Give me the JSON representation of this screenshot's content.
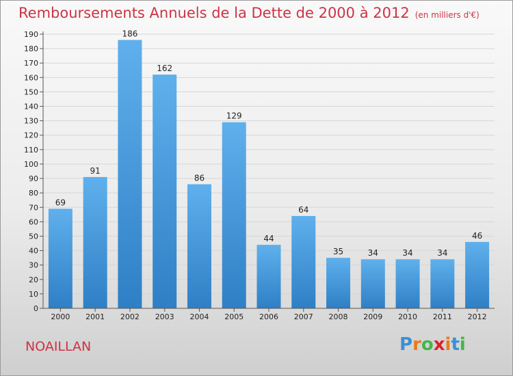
{
  "title": "Remboursements Annuels de la Dette de 2000 à 2012",
  "subtitle": "(en milliers d'€)",
  "commune": "NOAILLAN",
  "logo": {
    "letters": [
      "P",
      "r",
      "o",
      "x",
      "i",
      "t",
      "i"
    ],
    "colors": [
      "#3b8fd4",
      "#e87b1c",
      "#43b64a",
      "#d8232a",
      "#e87b1c",
      "#3b8fd4",
      "#43b64a"
    ]
  },
  "chart_data": {
    "type": "bar",
    "categories": [
      "2000",
      "2001",
      "2002",
      "2003",
      "2004",
      "2005",
      "2006",
      "2007",
      "2008",
      "2009",
      "2010",
      "2011",
      "2012"
    ],
    "values": [
      69,
      91,
      186,
      162,
      86,
      129,
      44,
      64,
      35,
      34,
      34,
      34,
      46
    ],
    "title": "Remboursements Annuels de la Dette de 2000 à 2012",
    "subtitle": "(en milliers d'€)",
    "xlabel": "",
    "ylabel": "",
    "ylim": [
      0,
      190
    ],
    "ytick_step": 10,
    "grid": true,
    "bar_color": "#4d9fe0"
  }
}
